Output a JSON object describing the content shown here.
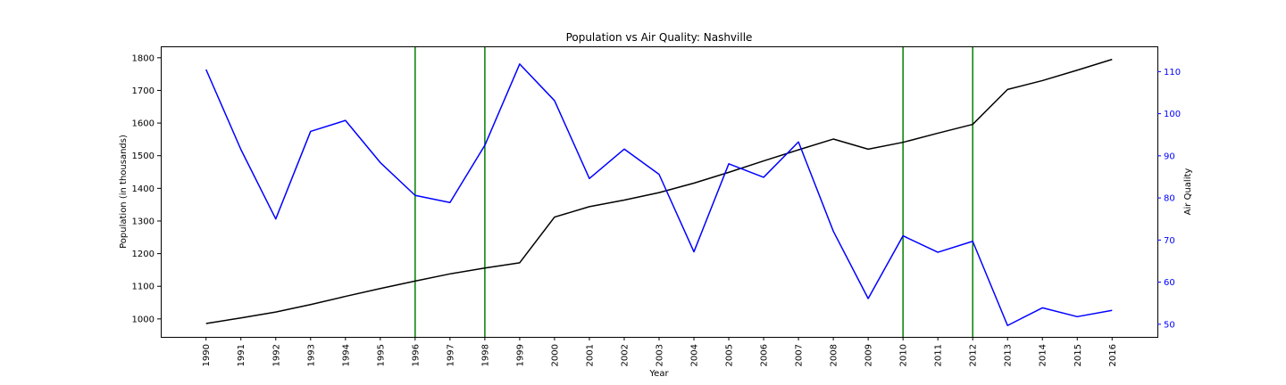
{
  "chart_data": {
    "type": "line",
    "title": "Population vs Air Quality: Nashville",
    "xlabel": "Year",
    "ylabel": "Population (in thousands)",
    "ylabel_right": "Air Quality",
    "x": [
      1990,
      1991,
      1992,
      1993,
      1994,
      1995,
      1996,
      1997,
      1998,
      1999,
      2000,
      2001,
      2002,
      2003,
      2004,
      2005,
      2006,
      2007,
      2008,
      2009,
      2010,
      2011,
      2012,
      2013,
      2014,
      2015,
      2016
    ],
    "x_tick_labels": [
      "1990",
      "1991",
      "1992",
      "1993",
      "1994",
      "1995",
      "1996",
      "1997",
      "1998",
      "1999",
      "2000",
      "2001",
      "2002",
      "2003",
      "2004",
      "2005",
      "2006",
      "2007",
      "2008",
      "2009",
      "2010",
      "2011",
      "2012",
      "2013",
      "2014",
      "2015",
      "2016"
    ],
    "y_left_ticks": [
      1000,
      1100,
      1200,
      1300,
      1400,
      1500,
      1600,
      1700,
      1800
    ],
    "y_right_ticks": [
      50,
      60,
      70,
      80,
      90,
      100,
      110
    ],
    "ylim_left": [
      945,
      1835
    ],
    "ylim_right": [
      47,
      116
    ],
    "grid": false,
    "series": [
      {
        "axis": "left",
        "color": "#000000",
        "values": [
          986,
          1003,
          1021,
          1044,
          1069,
          1093,
          1116,
          1138,
          1156,
          1172,
          1312,
          1344,
          1364,
          1387,
          1416,
          1449,
          1484,
          1518,
          1551,
          1520,
          1541,
          1569,
          1596,
          1703,
          1730,
          1762,
          1795
        ]
      },
      {
        "axis": "right",
        "color": "#0000ff",
        "values": [
          110.5,
          91.5,
          75.0,
          95.8,
          98.4,
          88.4,
          80.6,
          78.9,
          92.5,
          111.8,
          103.1,
          84.6,
          91.6,
          85.6,
          67.2,
          88.1,
          84.9,
          93.3,
          72.1,
          56.1,
          71.0,
          67.1,
          69.7,
          49.7,
          53.9,
          51.8,
          53.3
        ]
      }
    ],
    "vertical_lines": {
      "color": "#008000",
      "x": [
        1996,
        1998,
        2010,
        2012
      ]
    },
    "right_axis_tick_color": "#0000ff"
  }
}
